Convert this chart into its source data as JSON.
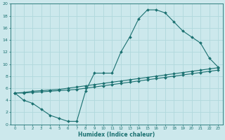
{
  "xlabel": "Humidex (Indice chaleur)",
  "bg_color": "#cce8ec",
  "line_color": "#1a7070",
  "grid_color": "#b0d8dc",
  "xlim": [
    -0.5,
    23.5
  ],
  "ylim": [
    0,
    20
  ],
  "xticks": [
    0,
    1,
    2,
    3,
    4,
    5,
    6,
    7,
    8,
    9,
    10,
    11,
    12,
    13,
    14,
    15,
    16,
    17,
    18,
    19,
    20,
    21,
    22,
    23
  ],
  "yticks": [
    0,
    2,
    4,
    6,
    8,
    10,
    12,
    14,
    16,
    18,
    20
  ],
  "curve1_x": [
    0,
    1,
    2,
    3,
    4,
    5,
    6,
    7,
    8,
    9,
    10,
    11,
    12,
    13,
    14,
    15,
    16,
    17,
    18,
    19,
    20,
    21,
    22,
    23
  ],
  "curve1_y": [
    5.2,
    4.0,
    3.5,
    2.5,
    1.5,
    1.0,
    0.5,
    0.5,
    5.5,
    8.5,
    8.5,
    8.5,
    12.0,
    14.5,
    17.5,
    19.0,
    19.0,
    18.5,
    17.0,
    15.5,
    14.5,
    13.5,
    11.0,
    9.5
  ],
  "curve2_x": [
    0,
    1,
    2,
    3,
    4,
    5,
    6,
    7,
    8,
    9,
    10,
    11,
    12,
    13,
    14,
    15,
    16,
    17,
    18,
    19,
    20,
    21,
    22,
    23
  ],
  "curve2_y": [
    5.2,
    5.3,
    5.5,
    5.6,
    5.7,
    5.8,
    6.0,
    6.2,
    6.4,
    6.6,
    6.8,
    7.0,
    7.2,
    7.4,
    7.6,
    7.8,
    8.0,
    8.2,
    8.4,
    8.6,
    8.8,
    9.0,
    9.2,
    9.4
  ],
  "curve3_x": [
    0,
    1,
    2,
    3,
    4,
    5,
    6,
    7,
    8,
    9,
    10,
    11,
    12,
    13,
    14,
    15,
    16,
    17,
    18,
    19,
    20,
    21,
    22,
    23
  ],
  "curve3_y": [
    5.2,
    5.2,
    5.3,
    5.4,
    5.5,
    5.6,
    5.7,
    5.8,
    6.0,
    6.2,
    6.4,
    6.6,
    6.8,
    7.0,
    7.2,
    7.4,
    7.6,
    7.8,
    8.0,
    8.2,
    8.4,
    8.6,
    8.8,
    9.0
  ]
}
